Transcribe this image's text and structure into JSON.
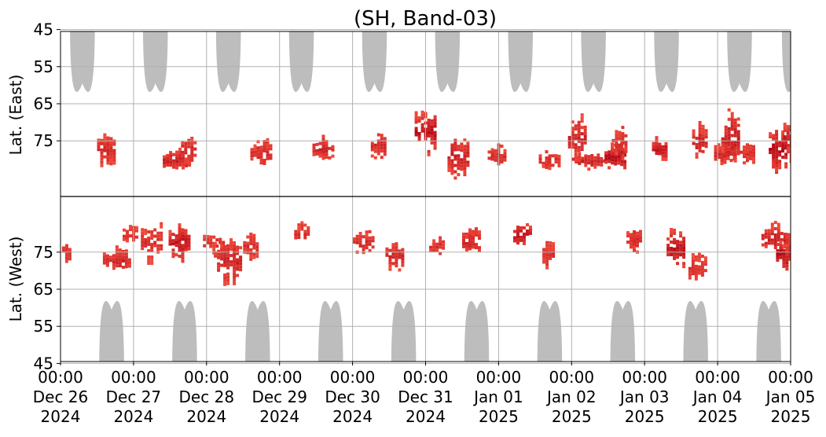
{
  "chart_data": {
    "type": "heatmap",
    "title": "(SH, Band-03)",
    "xlabel": "",
    "ylabel_top": "Lat. (East)",
    "ylabel_bottom": "Lat. (West)",
    "x_range": [
      "2024-12-26 00:00",
      "2025-01-05 00:00"
    ],
    "x_ticks": [
      {
        "time": "00:00",
        "date": "Dec 26",
        "year": "2024"
      },
      {
        "time": "00:00",
        "date": "Dec 27",
        "year": "2024"
      },
      {
        "time": "00:00",
        "date": "Dec 28",
        "year": "2024"
      },
      {
        "time": "00:00",
        "date": "Dec 29",
        "year": "2024"
      },
      {
        "time": "00:00",
        "date": "Dec 30",
        "year": "2024"
      },
      {
        "time": "00:00",
        "date": "Dec 31",
        "year": "2024"
      },
      {
        "time": "00:00",
        "date": "Jan 01",
        "year": "2025"
      },
      {
        "time": "00:00",
        "date": "Jan 02",
        "year": "2025"
      },
      {
        "time": "00:00",
        "date": "Jan 03",
        "year": "2025"
      },
      {
        "time": "00:00",
        "date": "Jan 04",
        "year": "2025"
      },
      {
        "time": "00:00",
        "date": "Jan 05",
        "year": "2025"
      }
    ],
    "y_ticks_east": [
      "45",
      "55",
      "65",
      "75"
    ],
    "y_ticks_west": [
      "75",
      "65",
      "55",
      "45"
    ],
    "grid": true,
    "colors": {
      "night_mask": "#bdbdbd",
      "activity_low": "#f0493a",
      "activity_high": "#b00010",
      "equator_line": "#000000",
      "grid": "#b0b0b0"
    },
    "night_mask_east_day_offsets": [
      0.3,
      1.3,
      2.3,
      3.3,
      4.3,
      5.3,
      6.3,
      7.3,
      8.3,
      9.3
    ],
    "night_mask_west_day_offsets": [
      0.7,
      1.7,
      2.7,
      3.7,
      4.7,
      5.7,
      6.7,
      7.7,
      8.7,
      9.7
    ],
    "activity_clusters": [
      {
        "day": 0.02,
        "lat": 75,
        "hemi": "west",
        "dur": 0.1,
        "span": 4,
        "level": 0.4
      },
      {
        "day": 0.5,
        "lat": 77,
        "hemi": "east",
        "dur": 0.25,
        "span": 7,
        "level": 0.5
      },
      {
        "day": 0.58,
        "lat": 73,
        "hemi": "west",
        "dur": 0.35,
        "span": 5,
        "level": 0.5
      },
      {
        "day": 0.85,
        "lat": 80,
        "hemi": "west",
        "dur": 0.2,
        "span": 4,
        "level": 0.3
      },
      {
        "day": 1.1,
        "lat": 78,
        "hemi": "west",
        "dur": 0.3,
        "span": 8,
        "level": 0.4
      },
      {
        "day": 1.4,
        "lat": 80,
        "hemi": "east",
        "dur": 0.35,
        "span": 5,
        "level": 0.6
      },
      {
        "day": 1.48,
        "lat": 78,
        "hemi": "west",
        "dur": 0.3,
        "span": 7,
        "level": 0.7
      },
      {
        "day": 1.65,
        "lat": 77,
        "hemi": "east",
        "dur": 0.2,
        "span": 6,
        "level": 0.5
      },
      {
        "day": 1.95,
        "lat": 78,
        "hemi": "west",
        "dur": 0.3,
        "span": 4,
        "level": 0.4
      },
      {
        "day": 2.1,
        "lat": 73,
        "hemi": "west",
        "dur": 0.35,
        "span": 10,
        "level": 0.55
      },
      {
        "day": 2.5,
        "lat": 77,
        "hemi": "west",
        "dur": 0.2,
        "span": 6,
        "level": 0.4
      },
      {
        "day": 2.6,
        "lat": 78,
        "hemi": "east",
        "dur": 0.3,
        "span": 5,
        "level": 0.5
      },
      {
        "day": 3.2,
        "lat": 80,
        "hemi": "west",
        "dur": 0.2,
        "span": 5,
        "level": 0.4
      },
      {
        "day": 3.45,
        "lat": 77,
        "hemi": "east",
        "dur": 0.3,
        "span": 5,
        "level": 0.5
      },
      {
        "day": 4.0,
        "lat": 78,
        "hemi": "west",
        "dur": 0.3,
        "span": 5,
        "level": 0.45
      },
      {
        "day": 4.25,
        "lat": 76,
        "hemi": "east",
        "dur": 0.2,
        "span": 6,
        "level": 0.5
      },
      {
        "day": 4.45,
        "lat": 74,
        "hemi": "west",
        "dur": 0.25,
        "span": 6,
        "level": 0.5
      },
      {
        "day": 4.85,
        "lat": 72,
        "hemi": "east",
        "dur": 0.3,
        "span": 9,
        "level": 0.85
      },
      {
        "day": 5.05,
        "lat": 77,
        "hemi": "west",
        "dur": 0.2,
        "span": 4,
        "level": 0.4
      },
      {
        "day": 5.3,
        "lat": 79,
        "hemi": "east",
        "dur": 0.3,
        "span": 10,
        "level": 0.6
      },
      {
        "day": 5.5,
        "lat": 78,
        "hemi": "west",
        "dur": 0.25,
        "span": 6,
        "level": 0.5
      },
      {
        "day": 5.85,
        "lat": 79,
        "hemi": "east",
        "dur": 0.25,
        "span": 4,
        "level": 0.4
      },
      {
        "day": 6.2,
        "lat": 80,
        "hemi": "west",
        "dur": 0.25,
        "span": 5,
        "level": 0.85
      },
      {
        "day": 6.55,
        "lat": 80,
        "hemi": "east",
        "dur": 0.3,
        "span": 4,
        "level": 0.4
      },
      {
        "day": 6.6,
        "lat": 75,
        "hemi": "west",
        "dur": 0.15,
        "span": 6,
        "level": 0.4
      },
      {
        "day": 7.0,
        "lat": 80,
        "hemi": "east",
        "dur": 0.45,
        "span": 3,
        "level": 0.6
      },
      {
        "day": 6.95,
        "lat": 74,
        "hemi": "east",
        "dur": 0.25,
        "span": 8,
        "level": 0.6
      },
      {
        "day": 7.45,
        "lat": 79,
        "hemi": "east",
        "dur": 0.3,
        "span": 6,
        "level": 0.9
      },
      {
        "day": 7.55,
        "lat": 75,
        "hemi": "east",
        "dur": 0.2,
        "span": 8,
        "level": 0.4
      },
      {
        "day": 7.75,
        "lat": 79,
        "hemi": "west",
        "dur": 0.2,
        "span": 5,
        "level": 0.4
      },
      {
        "day": 8.1,
        "lat": 77,
        "hemi": "east",
        "dur": 0.2,
        "span": 5,
        "level": 0.7
      },
      {
        "day": 8.3,
        "lat": 76,
        "hemi": "west",
        "dur": 0.25,
        "span": 9,
        "level": 0.8
      },
      {
        "day": 8.6,
        "lat": 71,
        "hemi": "west",
        "dur": 0.25,
        "span": 6,
        "level": 0.4
      },
      {
        "day": 8.65,
        "lat": 75,
        "hemi": "east",
        "dur": 0.2,
        "span": 7,
        "level": 0.6
      },
      {
        "day": 8.95,
        "lat": 78,
        "hemi": "east",
        "dur": 0.3,
        "span": 5,
        "level": 0.5
      },
      {
        "day": 9.05,
        "lat": 74,
        "hemi": "east",
        "dur": 0.25,
        "span": 10,
        "level": 0.7
      },
      {
        "day": 9.3,
        "lat": 78,
        "hemi": "east",
        "dur": 0.2,
        "span": 5,
        "level": 0.4
      },
      {
        "day": 9.6,
        "lat": 79,
        "hemi": "west",
        "dur": 0.35,
        "span": 6,
        "level": 0.6
      },
      {
        "day": 9.7,
        "lat": 77,
        "hemi": "east",
        "dur": 0.25,
        "span": 9,
        "level": 0.9
      },
      {
        "day": 9.8,
        "lat": 75,
        "hemi": "west",
        "dur": 0.2,
        "span": 8,
        "level": 0.95
      },
      {
        "day": 9.9,
        "lat": 74,
        "hemi": "east",
        "dur": 0.15,
        "span": 8,
        "level": 0.6
      },
      {
        "day": 9.93,
        "lat": 75,
        "hemi": "west",
        "dur": 0.12,
        "span": 6,
        "level": 0.5
      }
    ]
  }
}
